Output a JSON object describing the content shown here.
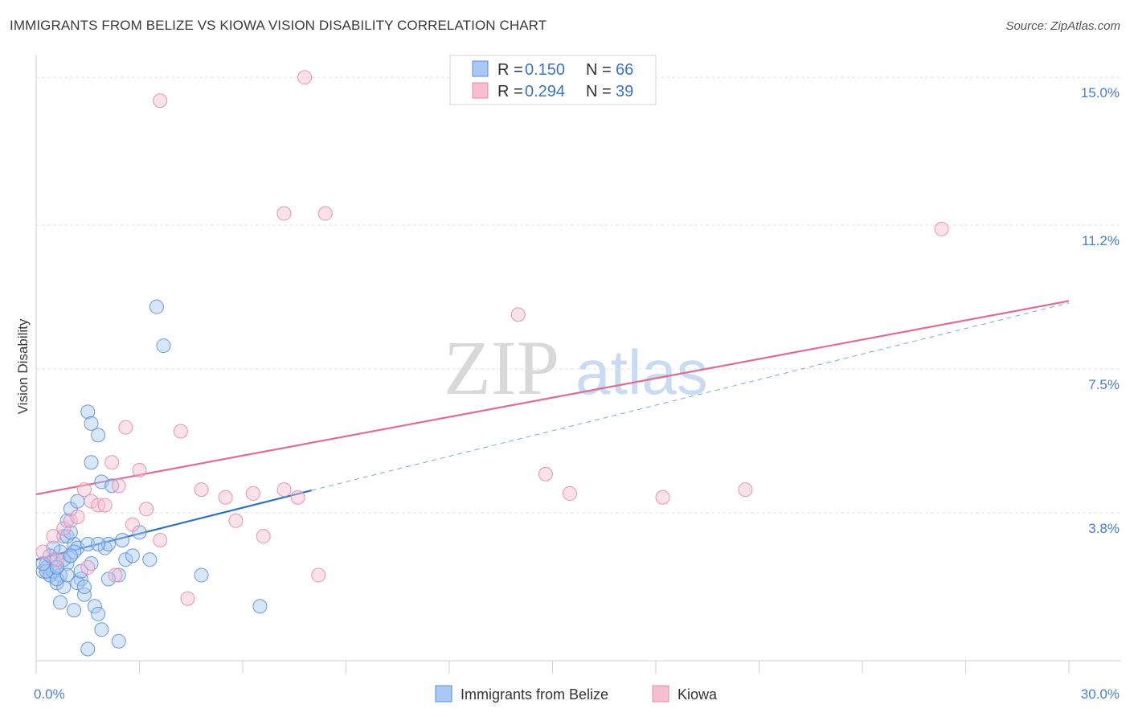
{
  "header": {
    "title": "IMMIGRANTS FROM BELIZE VS KIOWA VISION DISABILITY CORRELATION CHART",
    "source": "Source: ZipAtlas.com"
  },
  "watermark": {
    "zip": "ZIP",
    "atlas": "atlas"
  },
  "colors": {
    "belize_fill": "#a9c8f3",
    "belize_stroke": "#5b8fd8",
    "belize_line": "#2f6fce",
    "kiowa_fill": "#f7bdd0",
    "kiowa_stroke": "#e68aa9",
    "kiowa_line": "#e06b94",
    "grid": "#e3e3e3",
    "tick_text": "#4a7fd0"
  },
  "legend": {
    "rows": [
      {
        "r_label": "R =",
        "r_value": "0.150",
        "n_label": "N =",
        "n_value": "66"
      },
      {
        "r_label": "R =",
        "r_value": "0.294",
        "n_label": "N =",
        "n_value": "39"
      }
    ]
  },
  "bottom_legend": [
    "Immigrants from Belize",
    "Kiowa"
  ],
  "chart_data": {
    "type": "scatter",
    "ylabel": "Vision Disability",
    "xlabel": "",
    "xlim": [
      0,
      30
    ],
    "ylim": [
      0,
      15.5
    ],
    "x_tick_labels": [
      {
        "value": 0,
        "label": "0.0%"
      },
      {
        "value": 30,
        "label": "30.0%"
      }
    ],
    "y_tick_labels": [
      {
        "value": 3.8,
        "label": "3.8%"
      },
      {
        "value": 7.5,
        "label": "7.5%"
      },
      {
        "value": 11.2,
        "label": "11.2%"
      },
      {
        "value": 15.0,
        "label": "15.0%"
      }
    ],
    "grid": true,
    "legend_position": "top-center",
    "series": [
      {
        "name": "Immigrants from Belize",
        "points": [
          [
            0.2,
            2.3
          ],
          [
            0.3,
            2.5
          ],
          [
            0.4,
            2.2
          ],
          [
            0.5,
            2.6
          ],
          [
            0.3,
            2.4
          ],
          [
            0.6,
            2.0
          ],
          [
            0.7,
            2.8
          ],
          [
            0.8,
            3.2
          ],
          [
            0.9,
            2.5
          ],
          [
            1.0,
            2.7
          ],
          [
            1.1,
            3.0
          ],
          [
            1.2,
            2.9
          ],
          [
            1.3,
            2.1
          ],
          [
            1.4,
            1.7
          ],
          [
            1.5,
            3.0
          ],
          [
            0.5,
            2.9
          ],
          [
            0.6,
            2.4
          ],
          [
            0.7,
            2.2
          ],
          [
            0.8,
            1.9
          ],
          [
            0.9,
            3.6
          ],
          [
            1.0,
            3.9
          ],
          [
            1.1,
            2.8
          ],
          [
            1.2,
            4.1
          ],
          [
            1.6,
            2.5
          ],
          [
            1.7,
            1.4
          ],
          [
            1.8,
            1.2
          ],
          [
            1.9,
            0.8
          ],
          [
            2.0,
            2.9
          ],
          [
            2.1,
            3.0
          ],
          [
            2.4,
            2.2
          ],
          [
            2.5,
            3.1
          ],
          [
            2.6,
            2.6
          ],
          [
            2.8,
            2.7
          ],
          [
            3.0,
            3.3
          ],
          [
            3.3,
            2.6
          ],
          [
            0.4,
            2.2
          ],
          [
            0.5,
            2.3
          ],
          [
            0.6,
            2.1
          ],
          [
            0.7,
            1.5
          ],
          [
            0.8,
            2.6
          ],
          [
            0.9,
            3.2
          ],
          [
            1.0,
            3.3
          ],
          [
            1.1,
            1.3
          ],
          [
            1.2,
            2.0
          ],
          [
            1.3,
            2.3
          ],
          [
            1.5,
            0.3
          ],
          [
            1.6,
            5.1
          ],
          [
            1.8,
            5.8
          ],
          [
            1.9,
            4.6
          ],
          [
            2.2,
            4.5
          ],
          [
            1.5,
            6.4
          ],
          [
            1.6,
            6.1
          ],
          [
            3.5,
            9.1
          ],
          [
            3.7,
            8.1
          ],
          [
            1.4,
            1.9
          ],
          [
            2.4,
            0.5
          ],
          [
            0.3,
            2.3
          ],
          [
            0.2,
            2.5
          ],
          [
            0.4,
            2.7
          ],
          [
            0.6,
            2.4
          ],
          [
            0.9,
            2.2
          ],
          [
            1.0,
            2.7
          ],
          [
            1.8,
            3.0
          ],
          [
            2.1,
            2.1
          ],
          [
            4.8,
            2.2
          ],
          [
            6.5,
            1.4
          ]
        ]
      },
      {
        "name": "Kiowa",
        "points": [
          [
            0.2,
            2.8
          ],
          [
            0.5,
            3.2
          ],
          [
            0.8,
            3.4
          ],
          [
            1.0,
            3.6
          ],
          [
            1.2,
            3.7
          ],
          [
            1.4,
            4.4
          ],
          [
            1.6,
            4.1
          ],
          [
            1.8,
            4.0
          ],
          [
            2.0,
            4.0
          ],
          [
            2.2,
            5.1
          ],
          [
            2.4,
            4.5
          ],
          [
            2.6,
            6.0
          ],
          [
            2.8,
            3.5
          ],
          [
            3.0,
            4.9
          ],
          [
            3.2,
            3.9
          ],
          [
            3.6,
            3.1
          ],
          [
            4.2,
            5.9
          ],
          [
            4.8,
            4.4
          ],
          [
            5.5,
            4.2
          ],
          [
            5.8,
            3.6
          ],
          [
            6.3,
            4.3
          ],
          [
            6.6,
            3.2
          ],
          [
            7.2,
            4.4
          ],
          [
            7.6,
            4.2
          ],
          [
            8.2,
            2.2
          ],
          [
            4.4,
            1.6
          ],
          [
            2.3,
            2.2
          ],
          [
            1.5,
            2.4
          ],
          [
            3.6,
            14.4
          ],
          [
            7.8,
            15.0
          ],
          [
            7.2,
            11.5
          ],
          [
            8.4,
            11.5
          ],
          [
            14.0,
            8.9
          ],
          [
            14.8,
            4.8
          ],
          [
            15.5,
            4.3
          ],
          [
            18.2,
            4.2
          ],
          [
            20.6,
            4.4
          ],
          [
            26.3,
            11.1
          ],
          [
            0.6,
            2.6
          ]
        ]
      }
    ],
    "trend_lines": [
      {
        "series": "Immigrants from Belize",
        "x": [
          0,
          8.0
        ],
        "y": [
          2.6,
          4.38
        ],
        "style": "solid"
      },
      {
        "series": "Immigrants from Belize",
        "x": [
          8.0,
          30
        ],
        "y": [
          4.38,
          9.2
        ],
        "style": "dashed"
      },
      {
        "series": "Kiowa",
        "x": [
          0,
          30
        ],
        "y": [
          4.28,
          9.25
        ],
        "style": "solid"
      }
    ]
  }
}
